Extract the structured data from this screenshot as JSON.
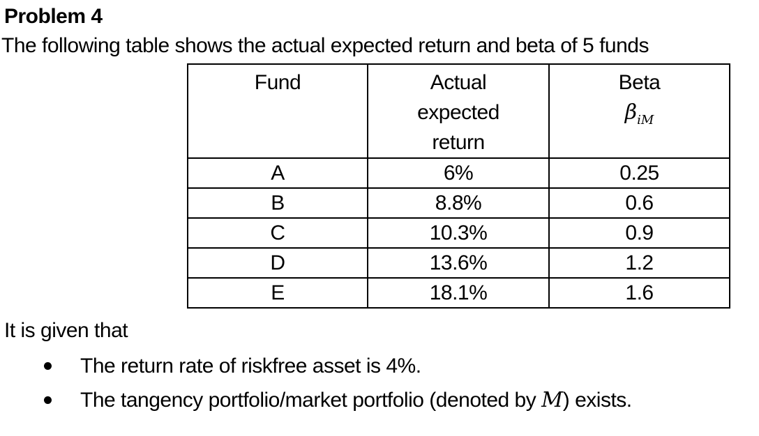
{
  "colors": {
    "background": "#ffffff",
    "text": "#000000",
    "table_border": "#000000"
  },
  "title": "Problem 4",
  "intro": "The following table shows the actual expected return and beta of 5 funds",
  "table": {
    "headers": {
      "fund": "Fund",
      "actual_line1": "Actual",
      "actual_line2": "expected",
      "actual_line3": "return",
      "beta_label": "Beta",
      "beta_symbol": "β",
      "beta_subscript": "iM"
    },
    "rows": [
      {
        "fund": "A",
        "actual_expected_return": "6%",
        "beta": "0.25"
      },
      {
        "fund": "B",
        "actual_expected_return": "8.8%",
        "beta": "0.6"
      },
      {
        "fund": "C",
        "actual_expected_return": "10.3%",
        "beta": "0.9"
      },
      {
        "fund": "D",
        "actual_expected_return": "13.6%",
        "beta": "1.2"
      },
      {
        "fund": "E",
        "actual_expected_return": "18.1%",
        "beta": "1.6"
      }
    ]
  },
  "given": {
    "lead": "It is given that",
    "bullets": [
      {
        "pre": "The return rate of riskfree asset is 4%.",
        "math": "",
        "post": ""
      },
      {
        "pre": "The tangency portfolio/market portfolio (denoted by ",
        "math": "M",
        "post": ") exists."
      }
    ]
  }
}
